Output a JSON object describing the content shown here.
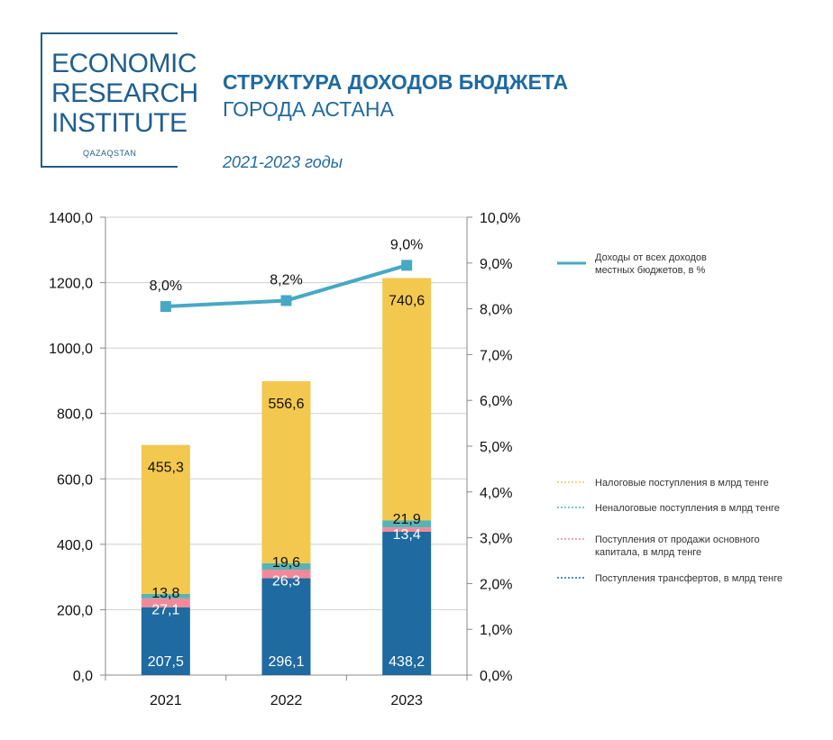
{
  "logo": {
    "line1": "ECONOMIC",
    "line2": "RESEARCH",
    "line3": "INSTITUTE",
    "sub": "QAZAQSTAN"
  },
  "header": {
    "title": "СТРУКТУРА ДОХОДОВ БЮДЖЕТА",
    "subtitle": "ГОРОДА АСТАНА",
    "period": "2021-2023 годы"
  },
  "colors": {
    "tax": "#f2c84f",
    "nontax": "#58b4b4",
    "capital": "#f08a9a",
    "transfers": "#1f6aa0",
    "line": "#47a8c4",
    "title": "#1f6aa0"
  },
  "chart_data": {
    "type": "bar",
    "stacked": true,
    "categories": [
      "2021",
      "2022",
      "2023"
    ],
    "ylim": [
      0,
      1400
    ],
    "yticks": [
      "0,0",
      "200,0",
      "400,0",
      "600,0",
      "800,0",
      "1000,0",
      "1200,0",
      "1400,0"
    ],
    "y2lim": [
      0,
      10
    ],
    "y2ticks": [
      "0,0%",
      "1,0%",
      "2,0%",
      "3,0%",
      "4,0%",
      "5,0%",
      "6,0%",
      "7,0%",
      "8,0%",
      "9,0%",
      "10,0%"
    ],
    "series": [
      {
        "name": "Поступления трансфертов, в млрд тенге",
        "color": "#1f6aa0",
        "values": [
          207.5,
          296.1,
          438.2
        ],
        "labels": [
          "207,5",
          "296,1",
          "438,2"
        ]
      },
      {
        "name": "Поступления от продажи основного капитала, в млрд тенге",
        "color": "#f08a9a",
        "values": [
          27.1,
          26.3,
          13.4
        ],
        "labels": [
          "27,1",
          "26,3",
          "13,4"
        ]
      },
      {
        "name": "Неналоговые поступления в млрд тенге",
        "color": "#58b4b4",
        "values": [
          13.8,
          19.6,
          21.9
        ],
        "labels": [
          "13,8",
          "19,6",
          "21,9"
        ]
      },
      {
        "name": "Налоговые поступления в млрд тенге",
        "color": "#f2c84f",
        "values": [
          455.3,
          556.6,
          740.6
        ],
        "labels": [
          "455,3",
          "556,6",
          "740,6"
        ]
      }
    ],
    "line_series": {
      "name": "Доходы от всех доходов местных бюджетов, в %",
      "color": "#47a8c4",
      "values": [
        8.05,
        8.18,
        8.95
      ],
      "labels": [
        "8,0%",
        "8,2%",
        "9,0%"
      ]
    },
    "legend": {
      "line": [
        "Доходы от всех доходов",
        "местных бюджетов, в %"
      ],
      "tax": [
        "Налоговые поступления в млрд тенге"
      ],
      "nontax": [
        "Неналоговые поступления в млрд тенге"
      ],
      "capital": [
        "Поступления от продажи основного",
        "капитала, в млрд тенге"
      ],
      "transfers": [
        "Поступления трансфертов, в млрд тенге"
      ]
    }
  }
}
